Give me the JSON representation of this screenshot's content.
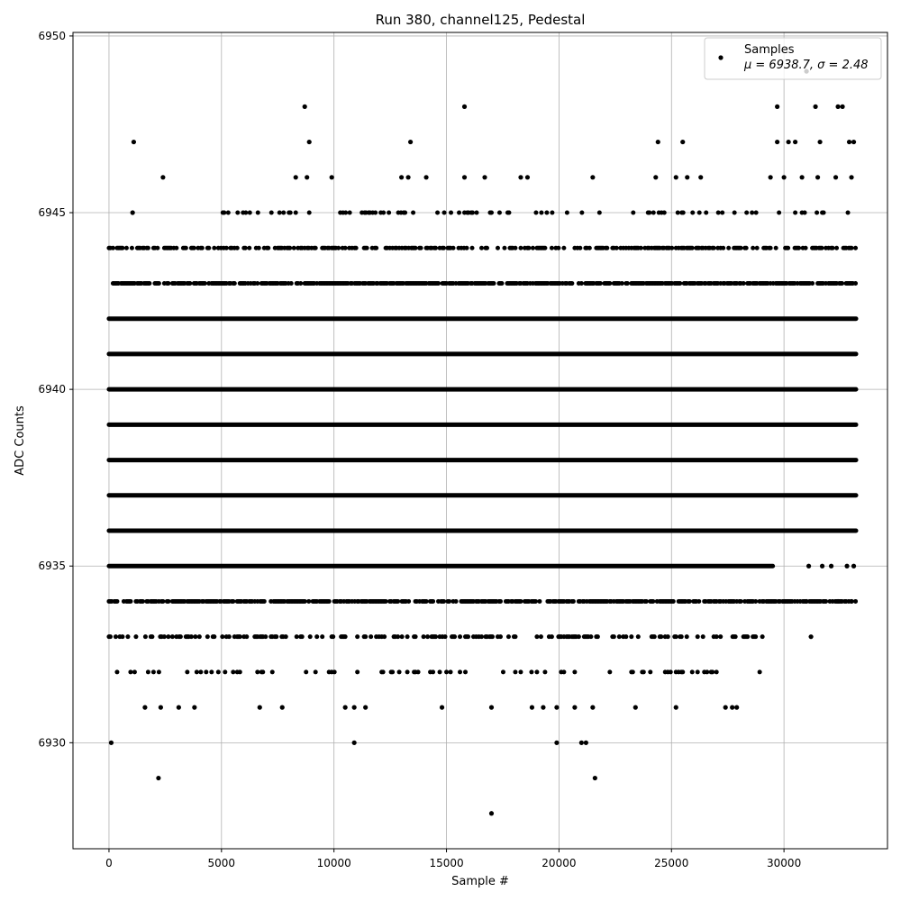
{
  "chart_data": {
    "type": "scatter",
    "title": "Run 380, channel125, Pedestal",
    "xlabel": "Sample #",
    "ylabel": "ADC Counts",
    "xlim": [
      -1600,
      34600
    ],
    "ylim": [
      6927.0,
      6950.1
    ],
    "x_ticks": [
      0,
      5000,
      10000,
      15000,
      20000,
      25000,
      30000
    ],
    "y_ticks": [
      6930,
      6935,
      6940,
      6945,
      6950
    ],
    "grid": true,
    "marker_color": "#000000",
    "legend": {
      "placement": "top-right",
      "entries": [
        {
          "label": "Samples",
          "stats": "μ = 6938.7, σ = 2.48"
        }
      ]
    },
    "series": [
      {
        "name": "Samples",
        "dense_levels": [
          {
            "y": 6935,
            "x_range": [
              0,
              29500
            ]
          },
          {
            "y": 6936,
            "x_range": [
              0,
              33200
            ]
          },
          {
            "y": 6937,
            "x_range": [
              0,
              33200
            ]
          },
          {
            "y": 6938,
            "x_range": [
              0,
              33200
            ]
          },
          {
            "y": 6939,
            "x_range": [
              0,
              33200
            ]
          },
          {
            "y": 6940,
            "x_range": [
              0,
              33200
            ]
          },
          {
            "y": 6941,
            "x_range": [
              0,
              33200
            ]
          },
          {
            "y": 6942,
            "x_range": [
              0,
              33200
            ]
          }
        ],
        "sparse_levels": [
          {
            "y": 6934,
            "x_range": [
              0,
              33200
            ],
            "density": 0.7
          },
          {
            "y": 6943,
            "x_range": [
              0,
              33200
            ],
            "density": 0.75
          },
          {
            "y": 6944,
            "x_range": [
              0,
              33200
            ],
            "density": 0.45
          },
          {
            "y": 6933,
            "x_range": [
              0,
              29300
            ],
            "density": 0.35
          },
          {
            "y": 6945,
            "x_range": [
              5000,
              33200
            ],
            "density": 0.18
          },
          {
            "y": 6932,
            "x_range": [
              0,
              29000
            ],
            "density": 0.15
          }
        ],
        "points": [
          [
            1100,
            6947
          ],
          [
            1050,
            6945
          ],
          [
            2400,
            6946
          ],
          [
            8700,
            6948
          ],
          [
            8900,
            6947
          ],
          [
            8300,
            6946
          ],
          [
            8800,
            6946
          ],
          [
            9900,
            6946
          ],
          [
            13400,
            6947
          ],
          [
            13000,
            6946
          ],
          [
            13300,
            6946
          ],
          [
            14100,
            6946
          ],
          [
            15800,
            6948
          ],
          [
            15800,
            6946
          ],
          [
            16700,
            6946
          ],
          [
            18300,
            6946
          ],
          [
            18600,
            6946
          ],
          [
            21500,
            6946
          ],
          [
            24300,
            6946
          ],
          [
            24400,
            6947
          ],
          [
            25500,
            6947
          ],
          [
            25200,
            6946
          ],
          [
            25700,
            6946
          ],
          [
            26300,
            6946
          ],
          [
            29700,
            6948
          ],
          [
            29700,
            6947
          ],
          [
            30200,
            6947
          ],
          [
            30500,
            6947
          ],
          [
            31400,
            6948
          ],
          [
            31600,
            6947
          ],
          [
            32400,
            6948
          ],
          [
            32600,
            6948
          ],
          [
            32900,
            6947
          ],
          [
            33100,
            6947
          ],
          [
            29400,
            6946
          ],
          [
            30000,
            6946
          ],
          [
            30800,
            6946
          ],
          [
            31500,
            6946
          ],
          [
            32300,
            6946
          ],
          [
            33000,
            6946
          ],
          [
            31000,
            6949
          ],
          [
            31100,
            6935
          ],
          [
            31700,
            6935
          ],
          [
            32100,
            6935
          ],
          [
            32800,
            6935
          ],
          [
            33100,
            6935
          ],
          [
            31000,
            6934
          ],
          [
            32400,
            6934
          ],
          [
            33000,
            6934
          ],
          [
            31200,
            6933
          ],
          [
            100,
            6930
          ],
          [
            10900,
            6930
          ],
          [
            19900,
            6930
          ],
          [
            21000,
            6930
          ],
          [
            21200,
            6930
          ],
          [
            1600,
            6931
          ],
          [
            2300,
            6931
          ],
          [
            3100,
            6931
          ],
          [
            3800,
            6931
          ],
          [
            6700,
            6931
          ],
          [
            7700,
            6931
          ],
          [
            10500,
            6931
          ],
          [
            10900,
            6931
          ],
          [
            11400,
            6931
          ],
          [
            14800,
            6931
          ],
          [
            17000,
            6931
          ],
          [
            18800,
            6931
          ],
          [
            19300,
            6931
          ],
          [
            19900,
            6931
          ],
          [
            20700,
            6931
          ],
          [
            21500,
            6931
          ],
          [
            23400,
            6931
          ],
          [
            25200,
            6931
          ],
          [
            27400,
            6931
          ],
          [
            27700,
            6931
          ],
          [
            27900,
            6931
          ],
          [
            2200,
            6929
          ],
          [
            21600,
            6929
          ],
          [
            17000,
            6928
          ]
        ]
      }
    ]
  }
}
